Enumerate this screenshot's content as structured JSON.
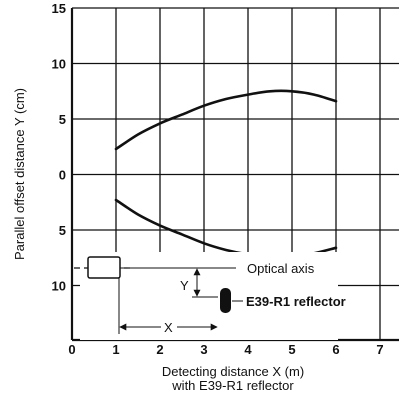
{
  "chart_data": {
    "type": "line",
    "title": "",
    "xlabel": "Detecting distance X (m)",
    "xlabel_line2": "with E39-R1 reflector",
    "ylabel": "Parallel offset distance Y (cm)",
    "xlim": [
      0,
      7
    ],
    "ylim": [
      -15,
      15
    ],
    "x_ticks": [
      0,
      1,
      2,
      3,
      4,
      5,
      6,
      7
    ],
    "x_tick_labels": [
      "0",
      "1",
      "2",
      "3",
      "4",
      "5",
      "6",
      "7"
    ],
    "y_ticks": [
      15,
      10,
      5,
      0,
      -5,
      -10
    ],
    "y_tick_labels": [
      "15",
      "10",
      "5",
      "0",
      "5",
      "10"
    ],
    "grid": true,
    "series": [
      {
        "x": [
          1,
          1.5,
          2,
          2.5,
          3,
          3.5,
          4,
          4.5,
          5,
          5.5,
          6
        ],
        "y": [
          2.3,
          3.6,
          4.6,
          5.4,
          6.2,
          6.8,
          7.2,
          7.5,
          7.5,
          7.2,
          6.6
        ]
      },
      {
        "x": [
          1,
          1.5,
          2,
          2.5,
          3,
          3.5,
          4,
          4.5,
          5,
          5.5,
          6
        ],
        "y": [
          -2.3,
          -3.6,
          -4.6,
          -5.4,
          -6.2,
          -6.8,
          -7.2,
          -7.4,
          -7.4,
          -7.1,
          -6.6
        ]
      }
    ],
    "annotations": {
      "optical_axis": "Optical axis",
      "x_label": "X",
      "y_label": "Y",
      "reflector": "E39-R1 reflector"
    }
  }
}
